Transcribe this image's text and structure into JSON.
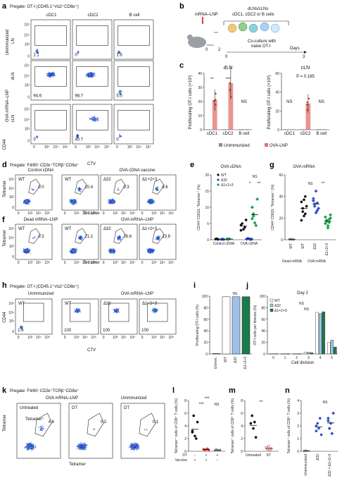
{
  "panel_labels": {
    "a": "a",
    "b": "b",
    "c": "c",
    "d": "d",
    "e": "e",
    "f": "f",
    "g": "g",
    "h": "h",
    "i": "i",
    "j": "j",
    "k": "k",
    "l": "l",
    "m": "m",
    "n": "n"
  },
  "panel_a": {
    "pregate": "Pregate: OT-I (CD45.1⁺Vα2⁺CD8α⁺)",
    "col_headers": [
      "cDC1",
      "cDC2",
      "B cell"
    ],
    "row_group_unimm": "Unimmunized",
    "row_group_ova": "OVA mRNA–LNP",
    "row_labels": [
      "LN",
      "dLN",
      "cLN"
    ],
    "values": [
      [
        "2.1",
        "0",
        "1.8"
      ],
      [
        "94.6",
        "98.7",
        "5.0"
      ],
      [
        "0",
        "40.7",
        "0"
      ]
    ],
    "y_axis": "CD44",
    "x_axis": "CTV",
    "ticks": [
      "0",
      "10³",
      "10⁴",
      "10⁵"
    ]
  },
  "panel_b": {
    "inject": "mRNA–LNP",
    "harvest": "dLNs/cLNs",
    "harvest2": "cDC1, cDC2 or B cells",
    "coculture": "Co-culture with",
    "coculture2": "naive OT-I",
    "days": "Days",
    "t0": "0",
    "t2": "2",
    "t0b": "0",
    "t3": "3"
  },
  "panel_c": {
    "ylabel": "Proliferating OT-I cells (×10²)",
    "legend": [
      "Unimmunized",
      "OVA-LNP"
    ],
    "chart_data": [
      {
        "type": "bar",
        "title": "dLN",
        "categories": [
          "cDC1",
          "cDC2",
          "B cell"
        ],
        "ylim": [
          0,
          40
        ],
        "yticks": [
          "0",
          "10",
          "20",
          "30",
          "40"
        ],
        "series": [
          {
            "name": "Unimmunized",
            "values": [
              0.3,
              0.3,
              0.3
            ]
          },
          {
            "name": "OVA-LNP",
            "values": [
              21,
              33,
              0.4
            ]
          }
        ],
        "annotations": [
          "**",
          "***",
          "NS"
        ]
      },
      {
        "type": "bar",
        "title": "cLN",
        "categories": [
          "cDC1",
          "cDC2",
          "B cell"
        ],
        "ylim": [
          0,
          60
        ],
        "yticks": [
          "0",
          "20",
          "40",
          "60"
        ],
        "series": [
          {
            "name": "Unimmunized",
            "values": [
              0.2,
              0.3,
              0.2
            ]
          },
          {
            "name": "OVA-LNP",
            "values": [
              0.3,
              28,
              0.3
            ]
          }
        ],
        "annotations": [
          "NS",
          "P = 0.185",
          "NS"
        ]
      }
    ]
  },
  "panel_d": {
    "pregate": "Pregate: F4/80⁻CD3ε⁺TCRβ⁺CD8α⁺",
    "group1": "Control cDNA",
    "group2": "OVA cDNA vaccine",
    "cols": [
      "WT",
      "WT",
      "Δ32",
      "Δ1+2+3"
    ],
    "values": [
      "0.0",
      "10.4",
      "0.3",
      "8.6"
    ],
    "y_axis": "Tetramer",
    "x_axis": "Tetramer"
  },
  "panel_f": {
    "group1": "Dead mRNA–LNP",
    "group2": "OVA mRNA–LNP",
    "cols": [
      "WT",
      "WT",
      "Δ32",
      "Δ1+2+3"
    ],
    "values": [
      "0.3",
      "21.2",
      "26.6",
      "13.8"
    ]
  },
  "panel_e": {
    "chart_data": {
      "type": "scatter",
      "title": "OVA cDNA",
      "ylabel": "CD44⁺CD62L⁻Tetramer⁺ (%)",
      "ylim": [
        0,
        20
      ],
      "yticks": [
        "0",
        "5",
        "10",
        "15",
        "20"
      ],
      "categories": [
        "Control cDNA",
        "OVA cDNA"
      ],
      "legend": [
        "WT",
        "Δ32",
        "Δ1+2+3"
      ],
      "series": [
        {
          "name": "WT",
          "values": [
            [
              0.2,
              0.3,
              0.1
            ],
            [
              4.5,
              5.0,
              3.2,
              3.8,
              6.1,
              2.9
            ]
          ]
        },
        {
          "name": "Δ32",
          "values": [
            [
              0.1,
              0.2,
              0.1
            ],
            [
              0.2,
              0.4,
              0.3,
              0.1,
              0.2
            ]
          ]
        },
        {
          "name": "Δ1+2+3",
          "values": [
            [
              0.2,
              0.1,
              0.3
            ],
            [
              6.5,
              8.0,
              5.2,
              4.4,
              12.5,
              10.0,
              7.3
            ]
          ]
        }
      ],
      "annotations": [
        "NS",
        "*",
        "**"
      ]
    }
  },
  "panel_g": {
    "chart_data": {
      "type": "scatter",
      "title": "OVA mRNA",
      "ylabel": "CD44⁺CD62L⁻Tetramer⁺ (%)",
      "ylim": [
        0,
        60
      ],
      "yticks": [
        "0",
        "20",
        "40",
        "60"
      ],
      "categories": [
        "WT",
        "WT",
        "Δ32",
        "Δ1+2+3"
      ],
      "group_labels": [
        "Dead mRNA",
        "OVA mRNA"
      ],
      "values": [
        [
          0.3,
          0.5,
          0.4,
          0.2
        ],
        [
          35,
          29,
          22,
          40,
          31,
          18,
          26,
          37,
          24
        ],
        [
          38,
          33,
          45,
          27,
          29,
          36,
          31,
          25,
          34
        ],
        [
          21,
          17,
          13,
          19,
          23,
          15,
          18,
          11,
          16,
          20
        ]
      ],
      "annotations": [
        "NS",
        "**"
      ]
    }
  },
  "panel_h": {
    "pregate": "Pregate: OT-I (CD45.1⁺Vα2⁺CD8α⁺)",
    "group1": "Unimmunized",
    "group2": "OVA mRNA–LNP",
    "cols": [
      "WT",
      "WT",
      "Δ32",
      "Δ1+2+3"
    ],
    "values": [
      "1.4",
      "100",
      "100",
      "100"
    ],
    "y_axis": "CD44",
    "x_axis": "CTV"
  },
  "panel_i": {
    "chart_data": {
      "type": "bar",
      "ylabel": "Proliferating OT-I cells (%)",
      "ylim": [
        0,
        100
      ],
      "yticks": [
        "0",
        "20",
        "40",
        "60",
        "80",
        "100"
      ],
      "categories": [
        "Unimm.",
        "WT",
        "Δ32",
        "Δ1+2+3"
      ],
      "values": [
        1,
        99,
        99,
        99
      ],
      "colors": [
        "#9e9e9e",
        "#ffffff",
        "#9fc0e8",
        "#1b7a4b"
      ],
      "annotations": [
        "NS"
      ]
    }
  },
  "panel_j": {
    "title": "Day 2",
    "chart_data": {
      "type": "bar",
      "xlabel": "Cell division",
      "ylabel": "OT-I cells per division (%)",
      "ylim": [
        0,
        100
      ],
      "yticks": [
        "0",
        "20",
        "40",
        "60",
        "80",
        "100"
      ],
      "categories": [
        "0",
        "1",
        "2",
        "3",
        "4",
        "5"
      ],
      "series": [
        {
          "name": "WT",
          "values": [
            0.5,
            0.5,
            0.5,
            3,
            72,
            20
          ]
        },
        {
          "name": "Δ32",
          "values": [
            0.5,
            0.5,
            0.5,
            3,
            70,
            24
          ]
        },
        {
          "name": "Δ1+2+3",
          "values": [
            0.5,
            0.5,
            0.5,
            2,
            73,
            12
          ]
        }
      ],
      "annotations": [
        "NS",
        "NS"
      ]
    }
  },
  "panel_k": {
    "pregate": "Pregate: F4/80⁻CD3ε⁺TCRβ⁺CD8α⁺",
    "group1": "OVA mRNA–LNP",
    "group2": "Unimmunized",
    "cols": [
      "Untreated",
      "DT",
      "DT"
    ],
    "gate_label": "Tetramer⁺",
    "values": [
      "4.6",
      "0.3",
      "0.1"
    ],
    "y_axis": "Tetramer",
    "x_axis": "Tetramer"
  },
  "panel_l": {
    "chart_data": {
      "type": "scatter",
      "ylabel": "Tetramer⁺ cells of CD8⁺ T cells (%)",
      "ylim": [
        0,
        8
      ],
      "yticks": [
        "0",
        "2",
        "4",
        "6",
        "8"
      ],
      "categories": [
        "1",
        "2",
        "3"
      ],
      "row_labels": [
        "DT",
        "Vaccine"
      ],
      "signs": [
        [
          "−",
          "+",
          "+"
        ],
        [
          "+",
          "+",
          "−"
        ]
      ],
      "values": [
        [
          3.2,
          5.6,
          2.4,
          2.0,
          4.6,
          3.0
        ],
        [
          0.3,
          0.2,
          0.3,
          0.4,
          0.2
        ],
        [
          0.1,
          0.3,
          0.2,
          0.1,
          0.2
        ]
      ],
      "annotations": [
        "***",
        "***",
        "NS"
      ]
    }
  },
  "panel_m": {
    "chart_data": {
      "type": "scatter",
      "ylabel": "Tetramer⁺ cells of CD8⁺ T cells (%)",
      "ylim": [
        0,
        8
      ],
      "yticks": [
        "0",
        "2",
        "4",
        "6",
        "8"
      ],
      "categories": [
        "Untreated",
        "DT"
      ],
      "values": [
        [
          4.4,
          5.6,
          3.6,
          4.6,
          2.2
        ],
        [
          0.6,
          0.3,
          0.8,
          0.2,
          0.4
        ]
      ],
      "annotations": [
        "**"
      ]
    }
  },
  "panel_n": {
    "chart_data": {
      "type": "scatter",
      "ylabel": "Tetramer⁺ cells of CD8⁺ T cells (%)",
      "ylim": [
        0,
        4
      ],
      "yticks": [
        "0",
        "1",
        "2",
        "3",
        "4"
      ],
      "categories": [
        "Unimmunized",
        "Δ32",
        "Δ32 × Δ1+2+3"
      ],
      "values": [
        [
          0.02,
          0.05,
          0.03
        ],
        [
          1.6,
          2.2,
          1.8,
          2.6,
          1.3,
          2.0
        ],
        [
          2.6,
          1.8,
          2.2,
          1.4,
          3.0,
          2.4
        ]
      ],
      "annotations": [
        "NS"
      ]
    }
  },
  "colors": {
    "unimmunized": "#8c8c8c",
    "ova": "#e36f6f",
    "wt": "#111111",
    "d32": "#2b4fd1",
    "d123": "#1b9e4b",
    "dt": "#e03c3c",
    "gray": "#9e9e9e"
  }
}
